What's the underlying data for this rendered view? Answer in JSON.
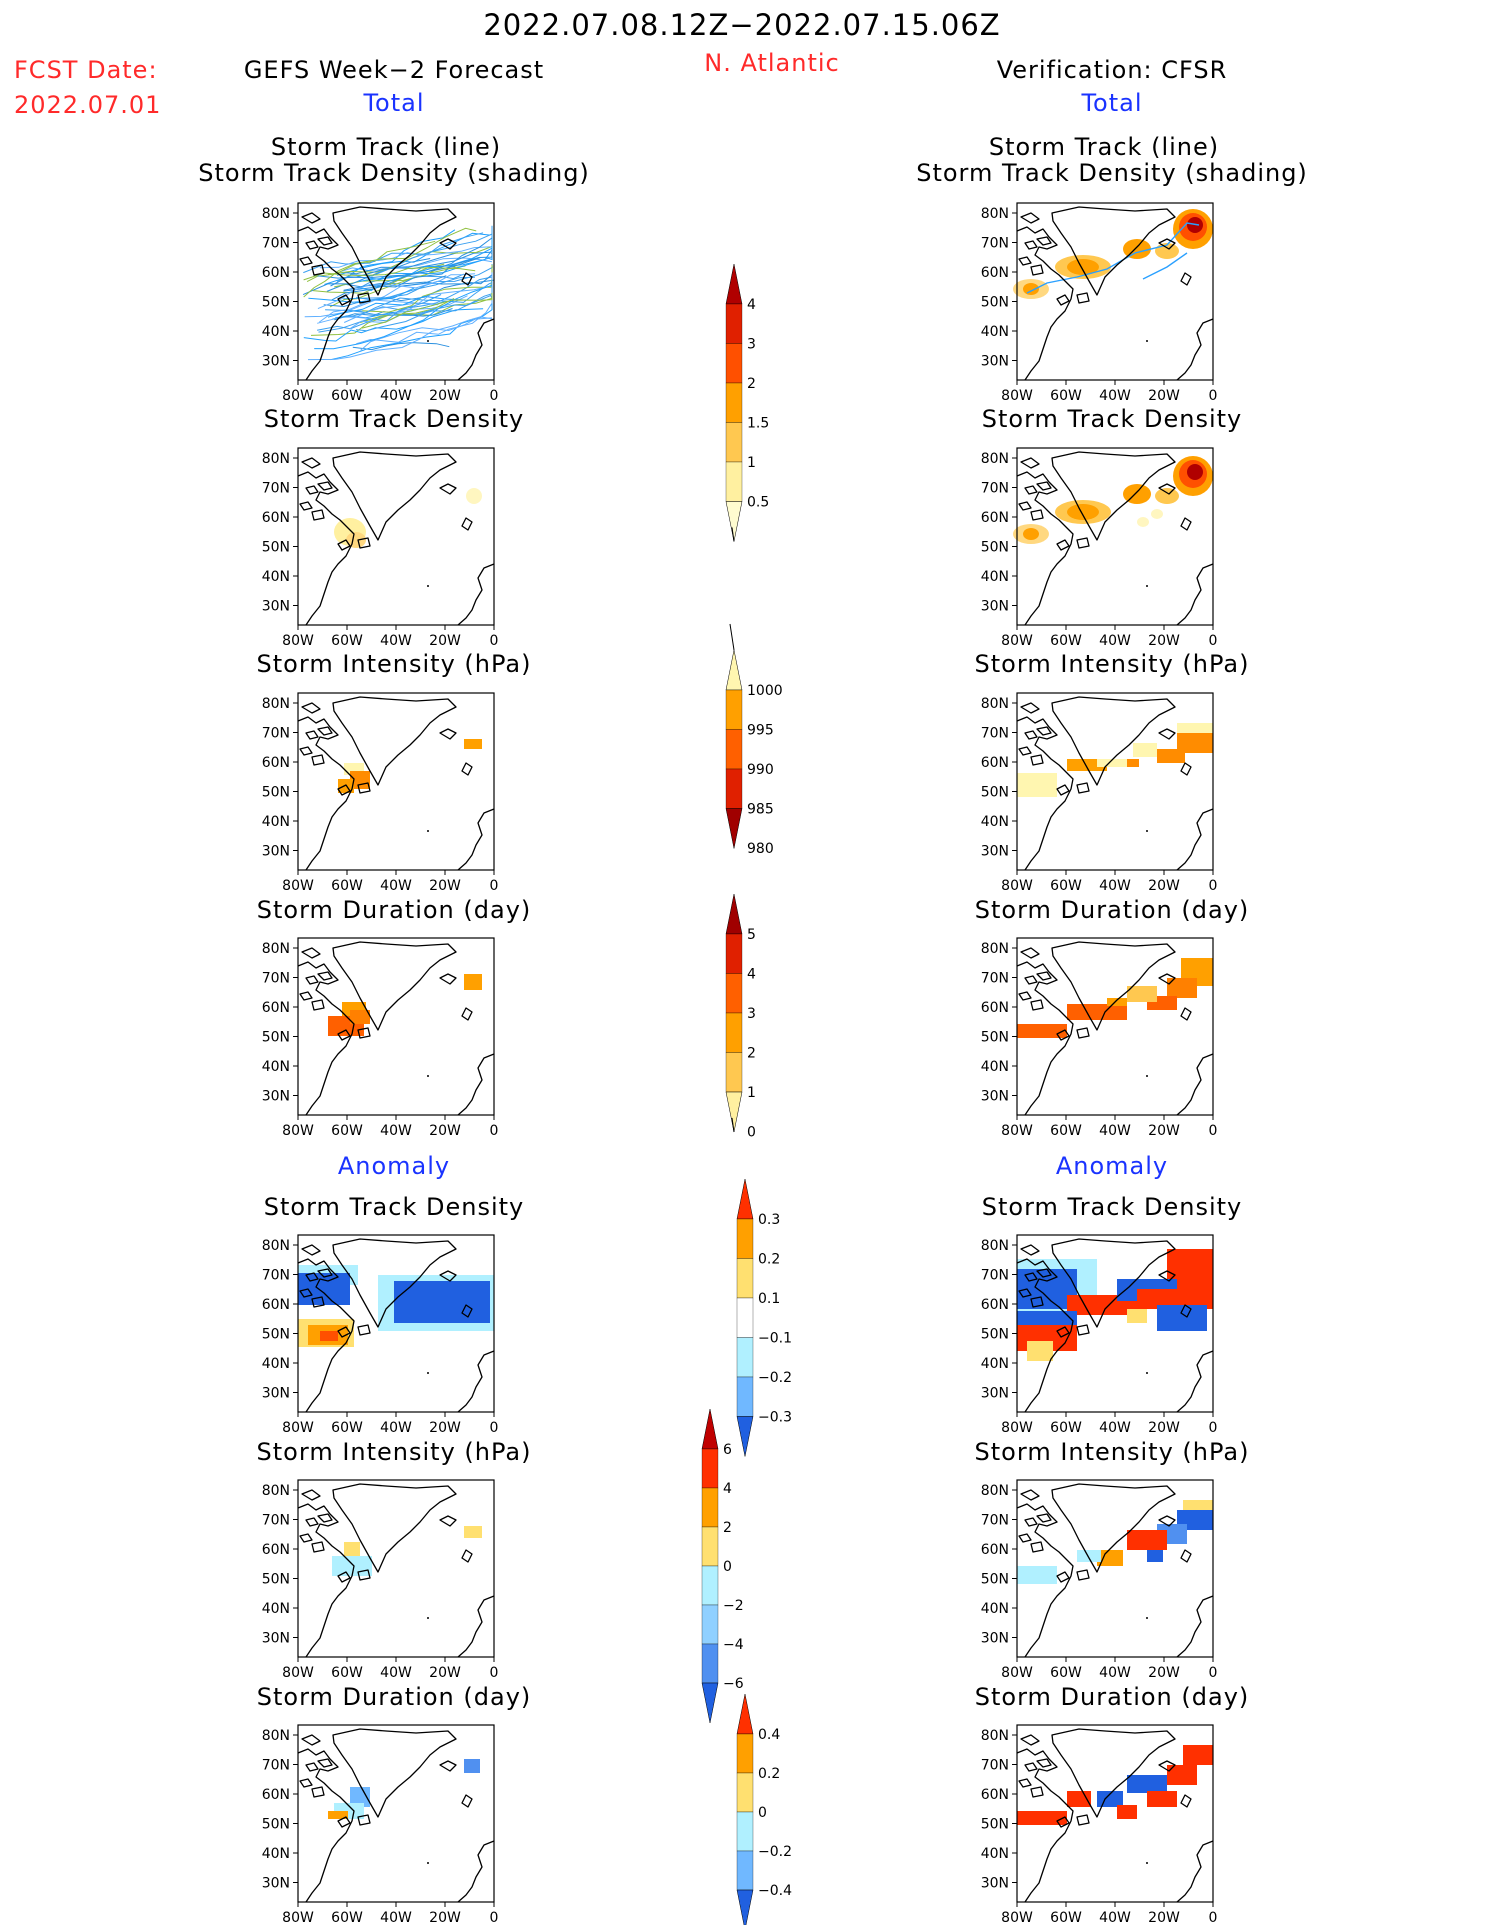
{
  "header": {
    "date_range": "2022.07.08.12Z−2022.07.15.06Z",
    "region": "N. Atlantic",
    "fcst_label": "FCST Date:",
    "fcst_date": "2022.07.01",
    "left_title": "GEFS Week−2 Forecast",
    "right_title": "Verification: CFSR",
    "total_left": "Total",
    "total_right": "Total",
    "anomaly_left": "Anomaly",
    "anomaly_right": "Anomaly"
  },
  "panel_titles": {
    "track_line": "Storm Track (line)",
    "track_shading": "Storm Track Density (shading)",
    "density": "Storm Track Density",
    "intensity": "Storm Intensity (hPa)",
    "duration": "Storm Duration (day)"
  },
  "axes": {
    "lat_labels": [
      "80N",
      "70N",
      "60N",
      "50N",
      "40N",
      "30N"
    ],
    "lon_labels": [
      "80W",
      "60W",
      "40W",
      "20W",
      "0"
    ]
  },
  "colorbars": {
    "density_total": {
      "labels": [
        "4",
        "3",
        "2",
        "1.5",
        "1",
        "0.5"
      ],
      "colors": [
        "#b00000",
        "#e02000",
        "#ff5000",
        "#ffa000",
        "#ffc850",
        "#fff0a0",
        "#fffcd0"
      ]
    },
    "intensity_total": {
      "labels": [
        "1000",
        "995",
        "990",
        "985",
        "980"
      ],
      "colors": [
        "#fff6b0",
        "#ffa000",
        "#ff6000",
        "#e02000",
        "#a00000"
      ]
    },
    "duration_total": {
      "labels": [
        "5",
        "4",
        "3",
        "2",
        "1",
        "0"
      ],
      "colors": [
        "#a00000",
        "#e02000",
        "#ff6000",
        "#ffa000",
        "#ffc850",
        "#fff0a0"
      ]
    },
    "density_anom": {
      "labels": [
        "0.3",
        "0.2",
        "0.1",
        "−0.1",
        "−0.2",
        "−0.3"
      ],
      "colors": [
        "#ff3000",
        "#ffa000",
        "#ffe070",
        "#ffffff",
        "#b0f0ff",
        "#70b8ff",
        "#2060e0"
      ]
    },
    "intensity_anom": {
      "labels": [
        "6",
        "4",
        "2",
        "0",
        "−2",
        "−4",
        "−6"
      ],
      "colors": [
        "#c00000",
        "#ff3000",
        "#ffa000",
        "#ffe070",
        "#b0f0ff",
        "#90d0ff",
        "#5090f0",
        "#2060e0"
      ]
    },
    "duration_anom": {
      "labels": [
        "0.4",
        "0.2",
        "0",
        "−0.2",
        "−0.4"
      ],
      "colors": [
        "#ff3000",
        "#ffa000",
        "#ffe070",
        "#b0f0ff",
        "#70b8ff",
        "#2060e0"
      ]
    }
  }
}
